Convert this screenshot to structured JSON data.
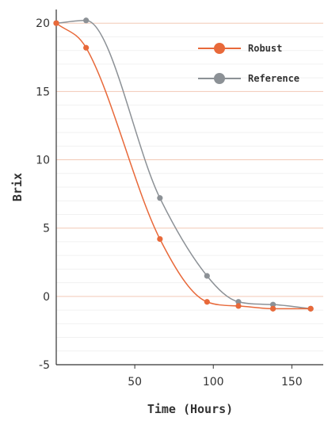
{
  "chart_data": {
    "type": "line",
    "title": "",
    "xlabel": "Time (Hours)",
    "ylabel": "Brix",
    "xlim": [
      0,
      170
    ],
    "ylim": [
      -5,
      21
    ],
    "xticks": [
      50,
      100,
      150
    ],
    "yticks": [
      -5,
      0,
      5,
      10,
      15,
      20
    ],
    "minor_grid_step": 1,
    "grid": "horizontal",
    "legend_position": "top-right",
    "series": [
      {
        "name": "Robust",
        "color": "#e8693a",
        "x": [
          0,
          19,
          66,
          96,
          116,
          138,
          162
        ],
        "y": [
          20,
          18.2,
          4.2,
          -0.4,
          -0.7,
          -0.9,
          -0.9
        ]
      },
      {
        "name": "Reference",
        "color": "#8c9196",
        "x": [
          0,
          19,
          66,
          96,
          116,
          138,
          162
        ],
        "y": [
          20,
          20.2,
          7.2,
          1.5,
          -0.4,
          -0.6,
          -0.9
        ]
      }
    ]
  }
}
